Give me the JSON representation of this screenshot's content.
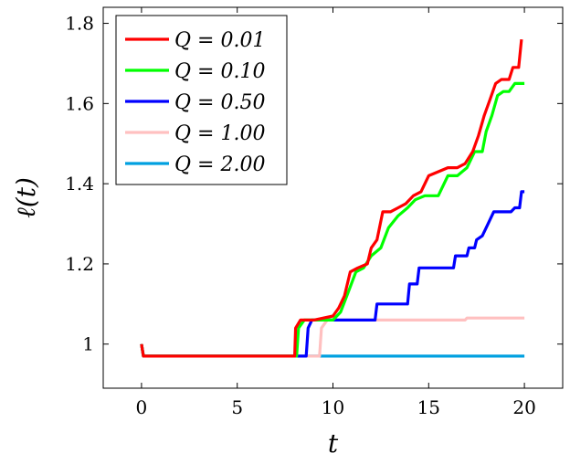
{
  "chart_data": {
    "type": "line",
    "xlabel": "t",
    "ylabel": "ℓ(t)",
    "xlim": [
      -2,
      22
    ],
    "ylim": [
      0.89,
      1.84
    ],
    "xticks": [
      0,
      5,
      10,
      15,
      20
    ],
    "yticks": [
      1,
      1.2,
      1.4,
      1.6,
      1.8
    ],
    "ytick_labels": [
      "1",
      "1.2",
      "1.4",
      "1.6",
      "1.8"
    ],
    "grid": false,
    "legend_position": "top-left",
    "series": [
      {
        "name": "Q = 0.01",
        "color": "#ff0000",
        "points": [
          [
            0,
            1.0
          ],
          [
            0.1,
            0.97
          ],
          [
            8.0,
            0.97
          ],
          [
            8.05,
            1.04
          ],
          [
            8.3,
            1.06
          ],
          [
            9.0,
            1.06
          ],
          [
            10.0,
            1.07
          ],
          [
            10.3,
            1.09
          ],
          [
            10.6,
            1.12
          ],
          [
            10.9,
            1.18
          ],
          [
            11.3,
            1.19
          ],
          [
            11.8,
            1.2
          ],
          [
            12.0,
            1.24
          ],
          [
            12.3,
            1.26
          ],
          [
            12.6,
            1.33
          ],
          [
            13.0,
            1.33
          ],
          [
            13.4,
            1.34
          ],
          [
            13.8,
            1.35
          ],
          [
            14.2,
            1.37
          ],
          [
            14.6,
            1.38
          ],
          [
            15.0,
            1.42
          ],
          [
            15.5,
            1.43
          ],
          [
            16.0,
            1.44
          ],
          [
            16.5,
            1.44
          ],
          [
            16.9,
            1.45
          ],
          [
            17.3,
            1.48
          ],
          [
            17.6,
            1.52
          ],
          [
            17.9,
            1.57
          ],
          [
            18.2,
            1.61
          ],
          [
            18.5,
            1.65
          ],
          [
            18.8,
            1.66
          ],
          [
            19.2,
            1.66
          ],
          [
            19.4,
            1.69
          ],
          [
            19.7,
            1.69
          ],
          [
            19.85,
            1.76
          ]
        ]
      },
      {
        "name": "Q = 0.10",
        "color": "#00ff00",
        "points": [
          [
            0,
            1.0
          ],
          [
            0.1,
            0.97
          ],
          [
            8.1,
            0.97
          ],
          [
            8.2,
            1.04
          ],
          [
            8.5,
            1.06
          ],
          [
            9.0,
            1.06
          ],
          [
            10.0,
            1.06
          ],
          [
            10.4,
            1.08
          ],
          [
            10.8,
            1.13
          ],
          [
            11.2,
            1.18
          ],
          [
            11.6,
            1.19
          ],
          [
            12.0,
            1.22
          ],
          [
            12.5,
            1.24
          ],
          [
            12.9,
            1.29
          ],
          [
            13.4,
            1.32
          ],
          [
            13.9,
            1.34
          ],
          [
            14.3,
            1.36
          ],
          [
            14.8,
            1.37
          ],
          [
            15.5,
            1.37
          ],
          [
            16.0,
            1.42
          ],
          [
            16.5,
            1.42
          ],
          [
            17.0,
            1.44
          ],
          [
            17.4,
            1.48
          ],
          [
            17.8,
            1.48
          ],
          [
            18.0,
            1.53
          ],
          [
            18.3,
            1.57
          ],
          [
            18.6,
            1.62
          ],
          [
            18.9,
            1.63
          ],
          [
            19.2,
            1.63
          ],
          [
            19.5,
            1.65
          ],
          [
            20.0,
            1.65
          ]
        ]
      },
      {
        "name": "Q = 0.50",
        "color": "#0000ff",
        "points": [
          [
            0,
            1.0
          ],
          [
            0.1,
            0.97
          ],
          [
            8.6,
            0.97
          ],
          [
            8.7,
            1.04
          ],
          [
            8.9,
            1.06
          ],
          [
            12.2,
            1.06
          ],
          [
            12.3,
            1.1
          ],
          [
            13.9,
            1.1
          ],
          [
            14.0,
            1.15
          ],
          [
            14.4,
            1.15
          ],
          [
            14.5,
            1.19
          ],
          [
            16.3,
            1.19
          ],
          [
            16.4,
            1.22
          ],
          [
            17.0,
            1.22
          ],
          [
            17.1,
            1.24
          ],
          [
            17.4,
            1.24
          ],
          [
            17.5,
            1.26
          ],
          [
            17.8,
            1.27
          ],
          [
            18.0,
            1.29
          ],
          [
            18.2,
            1.31
          ],
          [
            18.4,
            1.33
          ],
          [
            19.3,
            1.33
          ],
          [
            19.5,
            1.34
          ],
          [
            19.75,
            1.34
          ],
          [
            19.85,
            1.38
          ],
          [
            20.0,
            1.38
          ]
        ]
      },
      {
        "name": "Q = 1.00",
        "color": "#ffc0c0",
        "points": [
          [
            0,
            1.0
          ],
          [
            0.1,
            0.97
          ],
          [
            9.3,
            0.97
          ],
          [
            9.4,
            1.04
          ],
          [
            9.7,
            1.06
          ],
          [
            16.9,
            1.06
          ],
          [
            17.0,
            1.065
          ],
          [
            20.0,
            1.065
          ]
        ]
      },
      {
        "name": "Q = 2.00",
        "color": "#00a0e0",
        "points": [
          [
            0,
            1.0
          ],
          [
            0.1,
            0.97
          ],
          [
            20.0,
            0.97
          ]
        ]
      }
    ]
  }
}
